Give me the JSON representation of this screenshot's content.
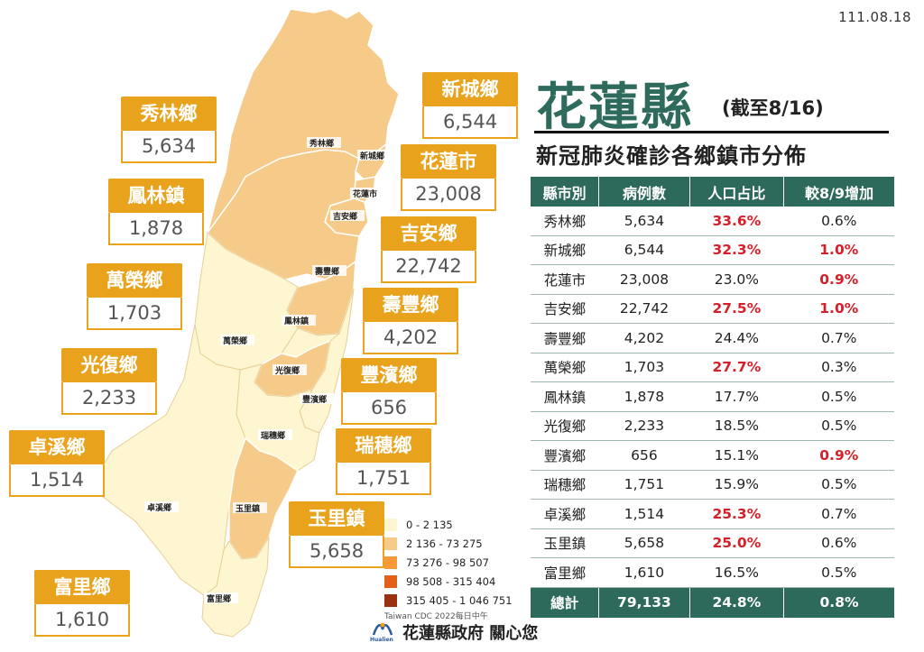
{
  "date": "111.08.18",
  "title": {
    "county": "花蓮縣",
    "as_of": "(截至8/16)",
    "subtitle": "新冠肺炎確診各鄉鎮市分佈"
  },
  "map_labels": {
    "xiulin": "秀林鄉",
    "xincheng": "新城鄉",
    "hualien_city": "花蓮市",
    "jian": "吉安鄉",
    "shoufeng": "壽豐鄉",
    "fenglin": "鳳林鎮",
    "wanrong": "萬榮鄉",
    "guangfu": "光復鄉",
    "fengbin": "豐濱鄉",
    "ruisui": "瑞穗鄉",
    "zhuoxi": "卓溪鄉",
    "yuli": "玉里鎮",
    "fuli": "富里鄉"
  },
  "callouts": {
    "xiulin": {
      "name": "秀林鄉",
      "value": "5,634"
    },
    "xincheng": {
      "name": "新城鄉",
      "value": "6,544"
    },
    "hualien_city": {
      "name": "花蓮市",
      "value": "23,008"
    },
    "fenglin": {
      "name": "鳳林鎮",
      "value": "1,878"
    },
    "jian": {
      "name": "吉安鄉",
      "value": "22,742"
    },
    "wanrong": {
      "name": "萬榮鄉",
      "value": "1,703"
    },
    "shoufeng": {
      "name": "壽豐鄉",
      "value": "4,202"
    },
    "guangfu": {
      "name": "光復鄉",
      "value": "2,233"
    },
    "fengbin": {
      "name": "豐濱鄉",
      "value": "656"
    },
    "zhuoxi": {
      "name": "卓溪鄉",
      "value": "1,514"
    },
    "ruisui": {
      "name": "瑞穗鄉",
      "value": "1,751"
    },
    "yuli": {
      "name": "玉里鎮",
      "value": "5,658"
    },
    "fuli": {
      "name": "富里鄉",
      "value": "1,610"
    }
  },
  "legend": {
    "items": [
      {
        "label": "0 - 2 135",
        "color": "#fdf6d0"
      },
      {
        "label": "2 136 - 73 275",
        "color": "#f6ca88"
      },
      {
        "label": "73 276 - 98 507",
        "color": "#f59a3a"
      },
      {
        "label": "98 508 - 315 404",
        "color": "#e2601a"
      },
      {
        "label": "315 405 - 1 046 751",
        "color": "#9a3212"
      }
    ],
    "source": "Taiwan CDC 2022每日中午"
  },
  "table": {
    "headers": [
      "縣市別",
      "病例數",
      "人口占比",
      "較8/9增加"
    ],
    "rows": [
      [
        "秀林鄉",
        "5,634",
        "33.6%",
        "0.6%"
      ],
      [
        "新城鄉",
        "6,544",
        "32.3%",
        "1.0%"
      ],
      [
        "花蓮市",
        "23,008",
        "23.0%",
        "0.9%"
      ],
      [
        "吉安鄉",
        "22,742",
        "27.5%",
        "1.0%"
      ],
      [
        "壽豐鄉",
        "4,202",
        "24.4%",
        "0.7%"
      ],
      [
        "萬榮鄉",
        "1,703",
        "27.7%",
        "0.3%"
      ],
      [
        "鳳林鎮",
        "1,878",
        "17.7%",
        "0.5%"
      ],
      [
        "光復鄉",
        "2,233",
        "18.5%",
        "0.5%"
      ],
      [
        "豐濱鄉",
        "656",
        "15.1%",
        "0.9%"
      ],
      [
        "瑞穗鄉",
        "1,751",
        "15.9%",
        "0.5%"
      ],
      [
        "卓溪鄉",
        "1,514",
        "25.3%",
        "0.7%"
      ],
      [
        "玉里鎮",
        "5,658",
        "25.0%",
        "0.6%"
      ],
      [
        "富里鄉",
        "1,610",
        "16.5%",
        "0.5%"
      ]
    ],
    "red_cells": [
      [
        0,
        2
      ],
      [
        1,
        2
      ],
      [
        1,
        3
      ],
      [
        2,
        3
      ],
      [
        3,
        2
      ],
      [
        3,
        3
      ],
      [
        5,
        2
      ],
      [
        8,
        3
      ],
      [
        10,
        2
      ],
      [
        11,
        2
      ]
    ],
    "total": [
      "總計",
      "79,133",
      "24.8%",
      "0.8%"
    ]
  },
  "colors": {
    "accent_orange": "#e8a21c",
    "table_header": "#2e6a5c",
    "title_green": "#2f6b5c",
    "highlight_red": "#d4202a"
  },
  "footer": {
    "logo_text": "Hualien",
    "text": "花蓮縣政府 關心您"
  }
}
